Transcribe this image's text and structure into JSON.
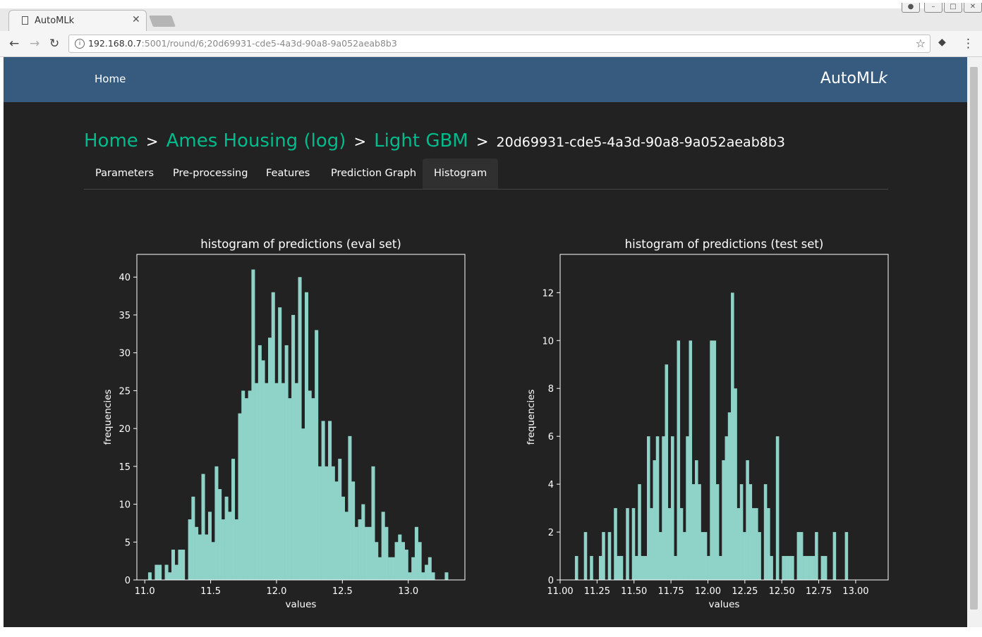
{
  "browser": {
    "tab_title": "AutoMLk",
    "url_host": "192.168.0.7",
    "url_rest": ":5001/round/6;20d69931-cde5-4a3d-90a8-9a052aeab8b3"
  },
  "navbar": {
    "home": "Home",
    "brand": "AutoML",
    "brand_k": "k"
  },
  "breadcrumb": {
    "items": [
      "Home",
      "Ames Housing (log)",
      "Light GBM"
    ],
    "separator": ">",
    "current": "20d69931-cde5-4a3d-90a8-9a052aeab8b3"
  },
  "tabs": [
    "Parameters",
    "Pre-processing",
    "Features",
    "Prediction Graph",
    "Histogram"
  ],
  "active_tab": "Histogram",
  "colors": {
    "bar": "#8fd3c8",
    "background": "#222222",
    "navbar": "#375a7f",
    "link": "#00bc8c"
  },
  "chart_data": [
    {
      "type": "bar",
      "title": "histogram of predictions (eval set)",
      "xlabel": "values",
      "ylabel": "frequencies",
      "xlim": [
        10.94,
        13.43
      ],
      "ylim": [
        0,
        43
      ],
      "xticks": [
        "11.0",
        "11.5",
        "12.0",
        "12.5",
        "13.0"
      ],
      "yticks": [
        "0",
        "5",
        "10",
        "15",
        "20",
        "25",
        "30",
        "35",
        "40"
      ],
      "bin_start": 11.0,
      "bin_width": 0.0253,
      "values": [
        0,
        1,
        0,
        2,
        2,
        0,
        2,
        1,
        4,
        2,
        4,
        4,
        0,
        8,
        11,
        7,
        6,
        14,
        6,
        9,
        5,
        15,
        12,
        8,
        11,
        9,
        16,
        8,
        22,
        25,
        24,
        25,
        41,
        26,
        31,
        29,
        26,
        32,
        38,
        26,
        36,
        26,
        31,
        24,
        35,
        26,
        40,
        20,
        38,
        25,
        24,
        33,
        15,
        21,
        15,
        21,
        15,
        13,
        16,
        11,
        9,
        19,
        13,
        7,
        8,
        10,
        7,
        7,
        15,
        5,
        3,
        9,
        7,
        3,
        3,
        5,
        6,
        5,
        4,
        1,
        3,
        7,
        5,
        1,
        2,
        3,
        1,
        0,
        0,
        0,
        1,
        0,
        0,
        0,
        0,
        0,
        0,
        0,
        0,
        0,
        0
      ]
    },
    {
      "type": "bar",
      "title": "histogram of predictions (test set)",
      "xlabel": "values",
      "ylabel": "frequencies",
      "xlim": [
        11.0,
        13.22
      ],
      "ylim": [
        0,
        13.6
      ],
      "xticks": [
        "11.00",
        "11.25",
        "11.50",
        "11.75",
        "12.00",
        "12.25",
        "12.50",
        "12.75",
        "13.00"
      ],
      "yticks": [
        "0",
        "2",
        "4",
        "6",
        "8",
        "10",
        "12"
      ],
      "bin_start": 11.1,
      "bin_width": 0.0203,
      "values": [
        1,
        0,
        0,
        2,
        0,
        1,
        0,
        0,
        1,
        2,
        0,
        2,
        0,
        3,
        1,
        1,
        0,
        3,
        0,
        3,
        1,
        4,
        1,
        1,
        6,
        3,
        5,
        6,
        2,
        6,
        9,
        3,
        6,
        1,
        10,
        3,
        2,
        6,
        10,
        4,
        5,
        4,
        2,
        2,
        1,
        10,
        10,
        4,
        1,
        5,
        6,
        7,
        12,
        8,
        3,
        4,
        2,
        5,
        4,
        3,
        3,
        2,
        0,
        4,
        3,
        1,
        0,
        6,
        0,
        1,
        1,
        1,
        1,
        0,
        2,
        2,
        1,
        1,
        1,
        1,
        2,
        0,
        1,
        1,
        0,
        0,
        2,
        0,
        0,
        0,
        2,
        0,
        0,
        0,
        0
      ]
    }
  ]
}
